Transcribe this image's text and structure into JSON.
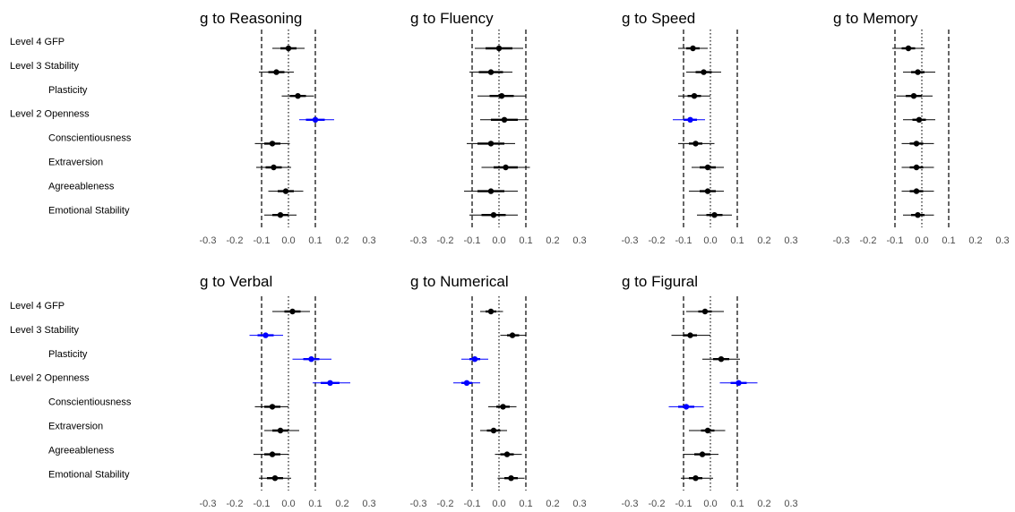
{
  "colors": {
    "significant": "#0000ff",
    "default": "#000000",
    "tick_text": "#4d4d4d"
  },
  "row_labels": [
    {
      "level": "Level 4",
      "name": "GFP"
    },
    {
      "level": "Level 3",
      "name": "Stability"
    },
    {
      "level": "",
      "name": "Plasticity"
    },
    {
      "level": "Level 2",
      "name": "Openness"
    },
    {
      "level": "",
      "name": "Conscientiousness"
    },
    {
      "level": "",
      "name": "Extraversion"
    },
    {
      "level": "",
      "name": "Agreeableness"
    },
    {
      "level": "",
      "name": "Emotional Stability"
    }
  ],
  "chart_data": [
    {
      "type": "scatter",
      "title": "g to Reasoning",
      "xlim": [
        -0.3,
        0.3
      ],
      "xticks": [
        "-0.3",
        "-0.2",
        "-0.1",
        "0.0",
        "0.1",
        "0.2",
        "0.3"
      ],
      "dashed_refs": [
        -0.1,
        0.1
      ],
      "dotted_ref": 0,
      "estimates": [
        0.0,
        -0.045,
        0.035,
        0.1,
        -0.06,
        -0.055,
        -0.01,
        -0.03
      ],
      "ci_inner": [
        [
          -0.03,
          0.03
        ],
        [
          -0.075,
          -0.015
        ],
        [
          0.005,
          0.065
        ],
        [
          0.065,
          0.135
        ],
        [
          -0.09,
          -0.03
        ],
        [
          -0.085,
          -0.025
        ],
        [
          -0.04,
          0.02
        ],
        [
          -0.06,
          0.0
        ]
      ],
      "ci_outer": [
        [
          -0.06,
          0.06
        ],
        [
          -0.11,
          0.02
        ],
        [
          -0.025,
          0.095
        ],
        [
          0.04,
          0.17
        ],
        [
          -0.125,
          0.005
        ],
        [
          -0.12,
          0.01
        ],
        [
          -0.075,
          0.055
        ],
        [
          -0.09,
          0.03
        ]
      ],
      "significant": [
        false,
        false,
        false,
        true,
        false,
        false,
        false,
        false
      ]
    },
    {
      "type": "scatter",
      "title": "g to Fluency",
      "xlim": [
        -0.3,
        0.3
      ],
      "xticks": [
        "-0.3",
        "-0.2",
        "-0.1",
        "0.0",
        "0.1",
        "0.2",
        "0.3"
      ],
      "dashed_refs": [
        -0.1,
        0.1
      ],
      "dotted_ref": 0,
      "estimates": [
        0.0,
        -0.03,
        0.01,
        0.02,
        -0.03,
        0.025,
        -0.03,
        -0.02
      ],
      "ci_inner": [
        [
          -0.05,
          0.05
        ],
        [
          -0.075,
          0.015
        ],
        [
          -0.035,
          0.055
        ],
        [
          -0.03,
          0.07
        ],
        [
          -0.08,
          0.02
        ],
        [
          -0.02,
          0.07
        ],
        [
          -0.08,
          0.02
        ],
        [
          -0.065,
          0.025
        ]
      ],
      "ci_outer": [
        [
          -0.09,
          0.09
        ],
        [
          -0.11,
          0.05
        ],
        [
          -0.08,
          0.1
        ],
        [
          -0.07,
          0.11
        ],
        [
          -0.12,
          0.06
        ],
        [
          -0.065,
          0.115
        ],
        [
          -0.13,
          0.07
        ],
        [
          -0.11,
          0.07
        ]
      ],
      "significant": [
        false,
        false,
        false,
        false,
        false,
        false,
        false,
        false
      ]
    },
    {
      "type": "scatter",
      "title": "g to Speed",
      "xlim": [
        -0.3,
        0.3
      ],
      "xticks": [
        "-0.3",
        "-0.2",
        "-0.1",
        "0.0",
        "0.1",
        "0.2",
        "0.3"
      ],
      "dashed_refs": [
        -0.1,
        0.1
      ],
      "dotted_ref": 0,
      "estimates": [
        -0.065,
        -0.025,
        -0.06,
        -0.075,
        -0.055,
        -0.01,
        -0.01,
        0.015
      ],
      "ci_inner": [
        [
          -0.09,
          -0.04
        ],
        [
          -0.055,
          0.005
        ],
        [
          -0.085,
          -0.035
        ],
        [
          -0.1,
          -0.05
        ],
        [
          -0.08,
          -0.03
        ],
        [
          -0.04,
          0.02
        ],
        [
          -0.04,
          0.02
        ],
        [
          -0.015,
          0.045
        ]
      ],
      "ci_outer": [
        [
          -0.12,
          -0.01
        ],
        [
          -0.09,
          0.04
        ],
        [
          -0.12,
          0.0
        ],
        [
          -0.14,
          -0.02
        ],
        [
          -0.12,
          0.015
        ],
        [
          -0.07,
          0.05
        ],
        [
          -0.08,
          0.05
        ],
        [
          -0.05,
          0.08
        ]
      ],
      "significant": [
        false,
        false,
        false,
        true,
        false,
        false,
        false,
        false
      ]
    },
    {
      "type": "scatter",
      "title": "g to Memory",
      "xlim": [
        -0.3,
        0.3
      ],
      "xticks": [
        "-0.3",
        "-0.2",
        "-0.1",
        "0.0",
        "0.1",
        "0.2",
        "0.3"
      ],
      "dashed_refs": [
        -0.1,
        0.1
      ],
      "dotted_ref": 0,
      "estimates": [
        -0.05,
        -0.015,
        -0.03,
        -0.01,
        -0.02,
        -0.02,
        -0.02,
        -0.015
      ],
      "ci_inner": [
        [
          -0.075,
          -0.025
        ],
        [
          -0.04,
          0.01
        ],
        [
          -0.06,
          0.0
        ],
        [
          -0.035,
          0.015
        ],
        [
          -0.045,
          0.005
        ],
        [
          -0.045,
          0.005
        ],
        [
          -0.045,
          0.005
        ],
        [
          -0.04,
          0.01
        ]
      ],
      "ci_outer": [
        [
          -0.11,
          0.01
        ],
        [
          -0.07,
          0.05
        ],
        [
          -0.095,
          0.04
        ],
        [
          -0.07,
          0.05
        ],
        [
          -0.075,
          0.045
        ],
        [
          -0.075,
          0.045
        ],
        [
          -0.075,
          0.045
        ],
        [
          -0.07,
          0.045
        ]
      ],
      "significant": [
        false,
        false,
        false,
        false,
        false,
        false,
        false,
        false
      ]
    },
    {
      "type": "scatter",
      "title": "g to Verbal",
      "xlim": [
        -0.3,
        0.3
      ],
      "xticks": [
        "-0.3",
        "-0.2",
        "-0.1",
        "0.0",
        "0.1",
        "0.2",
        "0.3"
      ],
      "dashed_refs": [
        -0.1,
        0.1
      ],
      "dotted_ref": 0,
      "estimates": [
        0.015,
        -0.085,
        0.085,
        0.155,
        -0.06,
        -0.03,
        -0.06,
        -0.05
      ],
      "ci_inner": [
        [
          -0.015,
          0.045
        ],
        [
          -0.115,
          -0.055
        ],
        [
          0.055,
          0.115
        ],
        [
          0.12,
          0.19
        ],
        [
          -0.09,
          -0.03
        ],
        [
          -0.06,
          0.0
        ],
        [
          -0.09,
          -0.03
        ],
        [
          -0.08,
          -0.02
        ]
      ],
      "ci_outer": [
        [
          -0.06,
          0.08
        ],
        [
          -0.145,
          -0.02
        ],
        [
          0.015,
          0.16
        ],
        [
          0.09,
          0.23
        ],
        [
          -0.125,
          0.0
        ],
        [
          -0.09,
          0.04
        ],
        [
          -0.13,
          0.0
        ],
        [
          -0.11,
          0.01
        ]
      ],
      "significant": [
        false,
        true,
        true,
        true,
        false,
        false,
        false,
        false
      ]
    },
    {
      "type": "scatter",
      "title": "g to Numerical",
      "xlim": [
        -0.3,
        0.3
      ],
      "xticks": [
        "-0.3",
        "-0.2",
        "-0.1",
        "0.0",
        "0.1",
        "0.2",
        "0.3"
      ],
      "dashed_refs": [
        -0.1,
        0.1
      ],
      "dotted_ref": 0,
      "estimates": [
        -0.03,
        0.05,
        -0.09,
        -0.12,
        0.015,
        -0.02,
        0.03,
        0.045
      ],
      "ci_inner": [
        [
          -0.05,
          -0.01
        ],
        [
          0.03,
          0.075
        ],
        [
          -0.11,
          -0.07
        ],
        [
          -0.14,
          -0.1
        ],
        [
          -0.01,
          0.04
        ],
        [
          -0.045,
          0.005
        ],
        [
          0.005,
          0.055
        ],
        [
          0.02,
          0.07
        ]
      ],
      "ci_outer": [
        [
          -0.07,
          0.015
        ],
        [
          0.005,
          0.1
        ],
        [
          -0.14,
          -0.04
        ],
        [
          -0.17,
          -0.07
        ],
        [
          -0.04,
          0.065
        ],
        [
          -0.07,
          0.03
        ],
        [
          -0.015,
          0.085
        ],
        [
          -0.005,
          0.095
        ]
      ],
      "significant": [
        false,
        false,
        true,
        true,
        false,
        false,
        false,
        false
      ]
    },
    {
      "type": "scatter",
      "title": "g to Figural",
      "xlim": [
        -0.3,
        0.3
      ],
      "xticks": [
        "-0.3",
        "-0.2",
        "-0.1",
        "0.0",
        "0.1",
        "0.2",
        "0.3"
      ],
      "dashed_refs": [
        -0.1,
        0.1
      ],
      "dotted_ref": 0,
      "estimates": [
        -0.02,
        -0.075,
        0.04,
        0.105,
        -0.09,
        -0.01,
        -0.03,
        -0.055
      ],
      "ci_inner": [
        [
          -0.045,
          0.005
        ],
        [
          -0.1,
          -0.05
        ],
        [
          0.01,
          0.07
        ],
        [
          0.075,
          0.135
        ],
        [
          -0.12,
          -0.06
        ],
        [
          -0.035,
          0.015
        ],
        [
          -0.06,
          0.0
        ],
        [
          -0.08,
          -0.03
        ]
      ],
      "ci_outer": [
        [
          -0.09,
          0.05
        ],
        [
          -0.145,
          0.0
        ],
        [
          -0.03,
          0.11
        ],
        [
          0.035,
          0.175
        ],
        [
          -0.155,
          -0.025
        ],
        [
          -0.08,
          0.055
        ],
        [
          -0.1,
          0.03
        ],
        [
          -0.11,
          0.01
        ]
      ],
      "significant": [
        false,
        false,
        false,
        true,
        true,
        false,
        false,
        false
      ]
    }
  ]
}
